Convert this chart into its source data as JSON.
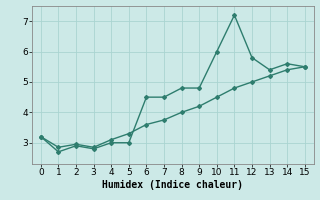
{
  "line1_x": [
    0,
    1,
    2,
    3,
    4,
    5,
    6,
    7,
    8,
    9,
    10,
    11,
    12,
    13,
    14,
    15
  ],
  "line1_y": [
    3.2,
    2.7,
    2.9,
    2.8,
    3.0,
    3.0,
    4.5,
    4.5,
    4.8,
    4.8,
    6.0,
    7.2,
    5.8,
    5.4,
    5.6,
    5.5
  ],
  "line2_x": [
    0,
    1,
    2,
    3,
    4,
    5,
    6,
    7,
    8,
    9,
    10,
    11,
    12,
    13,
    14,
    15
  ],
  "line2_y": [
    3.2,
    2.85,
    2.95,
    2.85,
    3.1,
    3.3,
    3.6,
    3.75,
    4.0,
    4.2,
    4.5,
    4.8,
    5.0,
    5.2,
    5.4,
    5.5
  ],
  "color": "#2e7d6e",
  "bg_color": "#cce9e7",
  "grid_color": "#aad4d1",
  "xlabel": "Humidex (Indice chaleur)",
  "xlim": [
    -0.5,
    15.5
  ],
  "ylim": [
    2.3,
    7.5
  ],
  "xticks": [
    0,
    1,
    2,
    3,
    4,
    5,
    6,
    7,
    8,
    9,
    10,
    11,
    12,
    13,
    14,
    15
  ],
  "yticks": [
    3,
    4,
    5,
    6,
    7
  ],
  "marker": "D",
  "marker_size": 2.0,
  "line_width": 1.0,
  "xlabel_fontsize": 7,
  "tick_fontsize": 6.5
}
